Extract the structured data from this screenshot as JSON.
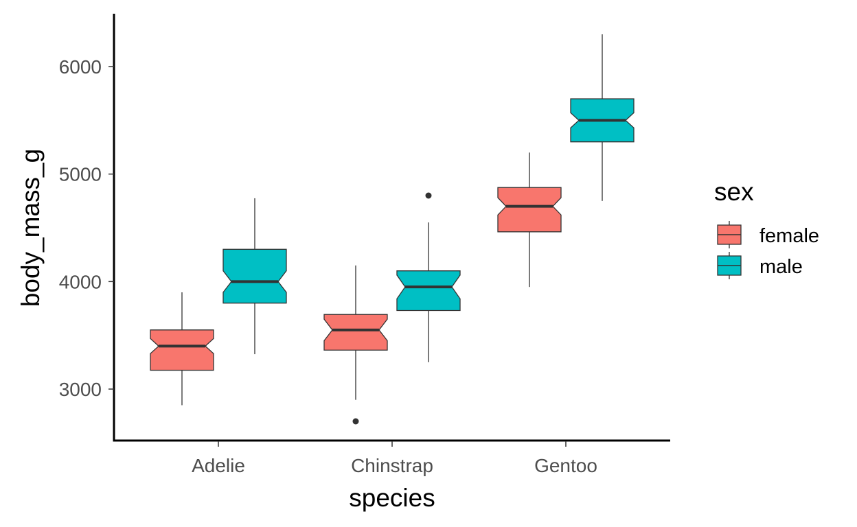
{
  "chart_data": {
    "type": "boxplot",
    "notched": true,
    "xlabel": "species",
    "ylabel": "body_mass_g",
    "categories": [
      "Adelie",
      "Chinstrap",
      "Gentoo"
    ],
    "ylim": [
      2500,
      6450
    ],
    "yticks": [
      3000,
      4000,
      5000,
      6000
    ],
    "grid": false,
    "legend": {
      "title": "sex",
      "position": "right",
      "entries": [
        {
          "label": "female",
          "color": "#F8766D"
        },
        {
          "label": "male",
          "color": "#00BFC4"
        }
      ]
    },
    "series": [
      {
        "name": "female",
        "color": "#F8766D",
        "boxes": [
          {
            "category": "Adelie",
            "lower_whisker": 2850,
            "q1": 3175,
            "median": 3400,
            "q3": 3550,
            "upper_whisker": 3900,
            "notch_low": 3330,
            "notch_high": 3470,
            "outliers": []
          },
          {
            "category": "Chinstrap",
            "lower_whisker": 2900,
            "q1": 3362,
            "median": 3550,
            "q3": 3694,
            "upper_whisker": 4150,
            "notch_low": 3450,
            "notch_high": 3650,
            "outliers": [
              2700
            ]
          },
          {
            "category": "Gentoo",
            "lower_whisker": 3950,
            "q1": 4463,
            "median": 4700,
            "q3": 4875,
            "upper_whisker": 5200,
            "notch_low": 4620,
            "notch_high": 4780,
            "outliers": []
          }
        ]
      },
      {
        "name": "male",
        "color": "#00BFC4",
        "boxes": [
          {
            "category": "Adelie",
            "lower_whisker": 3325,
            "q1": 3800,
            "median": 4000,
            "q3": 4300,
            "upper_whisker": 4775,
            "notch_low": 3900,
            "notch_high": 4100,
            "outliers": []
          },
          {
            "category": "Chinstrap",
            "lower_whisker": 3250,
            "q1": 3731,
            "median": 3950,
            "q3": 4100,
            "upper_whisker": 4550,
            "notch_low": 3840,
            "notch_high": 4060,
            "outliers": [
              4800
            ]
          },
          {
            "category": "Gentoo",
            "lower_whisker": 4750,
            "q1": 5300,
            "median": 5500,
            "q3": 5700,
            "upper_whisker": 6300,
            "notch_low": 5430,
            "notch_high": 5570,
            "outliers": []
          }
        ]
      }
    ]
  }
}
